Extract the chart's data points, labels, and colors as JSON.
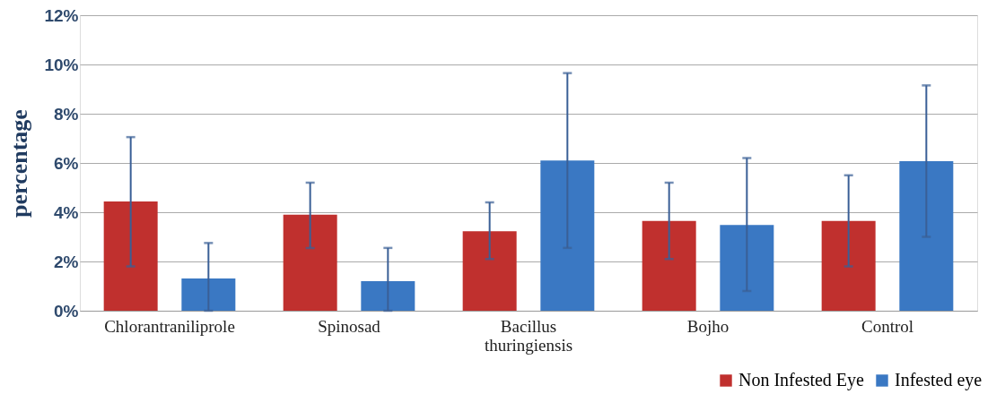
{
  "chart_data": {
    "type": "bar",
    "ylabel": "percentage",
    "categories": [
      "Chlorantraniliprole",
      "Spinosad",
      "Bacillus thuringiensis",
      "Bojho",
      "Control"
    ],
    "series": [
      {
        "name": "Non Infested Eye",
        "color": "#c0302e",
        "values": [
          4.44,
          3.9,
          3.23,
          3.65,
          3.65
        ],
        "errors": [
          [
            1.8,
            7.05
          ],
          [
            2.55,
            5.2
          ],
          [
            2.1,
            4.4
          ],
          [
            2.1,
            5.2
          ],
          [
            1.8,
            5.5
          ]
        ]
      },
      {
        "name": "Infested eye",
        "color": "#3a78c3",
        "values": [
          1.31,
          1.2,
          6.1,
          3.48,
          6.07
        ],
        "errors": [
          [
            0,
            2.75
          ],
          [
            0,
            2.55
          ],
          [
            2.55,
            9.65
          ],
          [
            0.8,
            6.2
          ],
          [
            3.0,
            9.15
          ]
        ]
      }
    ],
    "ylim": [
      0,
      12
    ],
    "yticks": [
      {
        "value": 0,
        "label": "0%"
      },
      {
        "value": 2,
        "label": "2%"
      },
      {
        "value": 4,
        "label": "4%"
      },
      {
        "value": 6,
        "label": "6%"
      },
      {
        "value": 8,
        "label": "8%"
      },
      {
        "value": 10,
        "label": "10%"
      },
      {
        "value": 12,
        "label": "12%"
      }
    ],
    "grid": "y",
    "legend": "bottom right"
  }
}
